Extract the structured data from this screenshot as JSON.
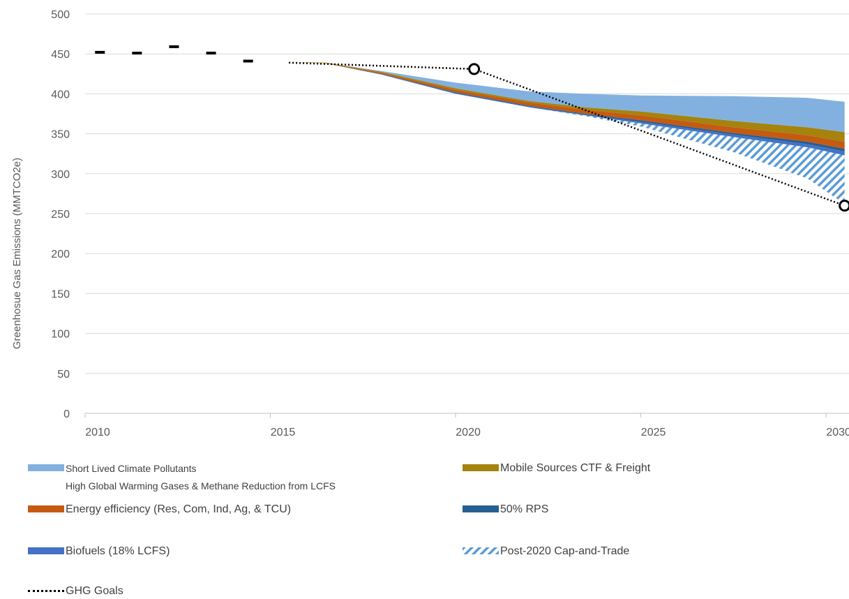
{
  "chart_data": {
    "type": "area",
    "ylabel": "Greenhosue Gas Emissions (MMTCO2e)",
    "xlabel": "",
    "xlim": [
      2010,
      2030
    ],
    "ylim": [
      0,
      500
    ],
    "x_ticks": [
      "2010",
      "2015",
      "2020",
      "2025",
      "2030"
    ],
    "y_ticks": [
      "0",
      "50",
      "100",
      "150",
      "200",
      "250",
      "300",
      "350",
      "400",
      "450",
      "500"
    ],
    "grid": true,
    "legend_position": "bottom",
    "historical_emissions": {
      "x": [
        2010.4,
        2011.4,
        2012.4,
        2013.4,
        2014.4
      ],
      "y": [
        452,
        451,
        459,
        451,
        441
      ]
    },
    "ghg_goals": {
      "name": "GHG Goals",
      "x": [
        2015.5,
        2020.5,
        2030.5
      ],
      "y": [
        439,
        431,
        260
      ],
      "marker_points": [
        [
          2020.5,
          431
        ],
        [
          2030.5,
          260
        ]
      ]
    },
    "stack_x": [
      2015.5,
      2016.5,
      2018,
      2020,
      2022,
      2023.5,
      2025,
      2027.5,
      2029.5,
      2030.5
    ],
    "stack_base": [
      440,
      438,
      424,
      400,
      383,
      372,
      359,
      327,
      294,
      262
    ],
    "series": [
      {
        "name": "Post-2020 Cap-and-Trade",
        "color": "#9DC3E6",
        "pattern": "hatch",
        "values": [
          0,
          0,
          0,
          0,
          0,
          1,
          4,
          19,
          39,
          61
        ]
      },
      {
        "name": "Biofuels (18% LCFS)",
        "color": "#4472C4",
        "values": [
          0,
          0,
          0.5,
          1,
          1,
          1,
          2,
          3,
          4,
          5
        ]
      },
      {
        "name": "50% RPS",
        "color": "#255E91",
        "values": [
          0,
          0,
          0.5,
          1,
          1,
          1,
          2,
          2,
          3,
          3
        ]
      },
      {
        "name": "Energy efficiency (Res, Com, Ind, Ag, & TCU)",
        "color": "#C55A11",
        "values": [
          0,
          0.5,
          1.5,
          3,
          4,
          5,
          6,
          7,
          8,
          9
        ]
      },
      {
        "name": "Mobile Sources CTF & Freight",
        "color": "#A5830D",
        "values": [
          0,
          0.5,
          1,
          2,
          2,
          3,
          5,
          8,
          10,
          12
        ]
      },
      {
        "name": "Short Lived Climate Pollutants High Global Warming Gases & Methane Reduction from LCFS",
        "color": "#83B1DF",
        "values": [
          0,
          0,
          1,
          7,
          12,
          17,
          20,
          31,
          37,
          38
        ]
      }
    ]
  },
  "legend": {
    "slcp_line1": "Short Lived Climate Pollutants",
    "slcp_line2": "High Global Warming Gases & Methane Reduction from LCFS",
    "mobile": "Mobile Sources CTF & Freight",
    "energy": "Energy efficiency (Res, Com, Ind, Ag, & TCU)",
    "rps": "50% RPS",
    "biofuels": "Biofuels (18% LCFS)",
    "capntrade": "Post-2020 Cap-and-Trade",
    "goals": "GHG Goals"
  },
  "colors": {
    "slcp": "#83B1DF",
    "mobile": "#A5830D",
    "energy": "#C55A11",
    "rps": "#255E91",
    "biofuels": "#4472C4",
    "capntrade": "#9DC3E6",
    "gridline": "#D9D9D9",
    "goals": "#000000"
  }
}
